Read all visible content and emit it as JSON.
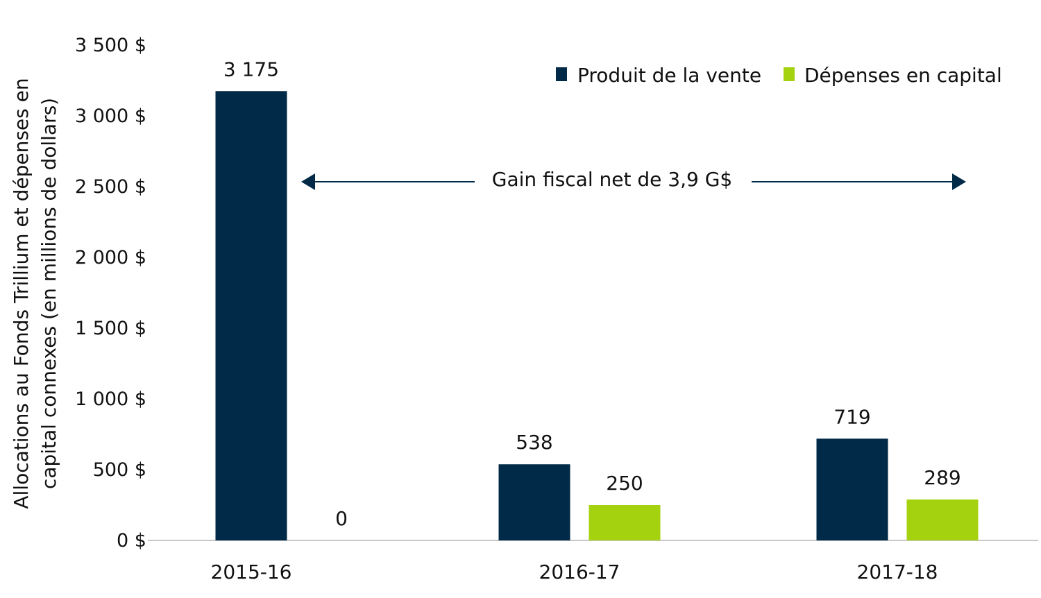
{
  "chart_data": {
    "type": "bar",
    "title": "",
    "xlabel": "",
    "ylabel_lines": [
      "Allocations au Fonds Trillium et dépenses en",
      "capital connexes (en millions de dollars)"
    ],
    "categories": [
      "2015-16",
      "2016-17",
      "2017-18"
    ],
    "series": [
      {
        "name": "Produit de la vente",
        "values": [
          3175,
          538,
          719
        ],
        "labels": [
          "3 175",
          "538",
          "719"
        ],
        "color": "#002a47"
      },
      {
        "name": "Dépenses en capital",
        "values": [
          0,
          250,
          289
        ],
        "labels": [
          "0",
          "250",
          "289"
        ],
        "color": "#a4d20f"
      }
    ],
    "ylim": [
      0,
      3500
    ],
    "yticks": [
      0,
      500,
      1000,
      1500,
      2000,
      2500,
      3000,
      3500
    ],
    "ytick_labels": [
      "0 $",
      "500 $",
      "1 000 $",
      "1 500 $",
      "2 000 $",
      "2 500 $",
      "3 000 $",
      "3 500 $"
    ],
    "legend_position": "top-right",
    "grid": false,
    "annotation": {
      "text": "Gain fiscal net de 3,9 G$",
      "y": 2500
    }
  }
}
